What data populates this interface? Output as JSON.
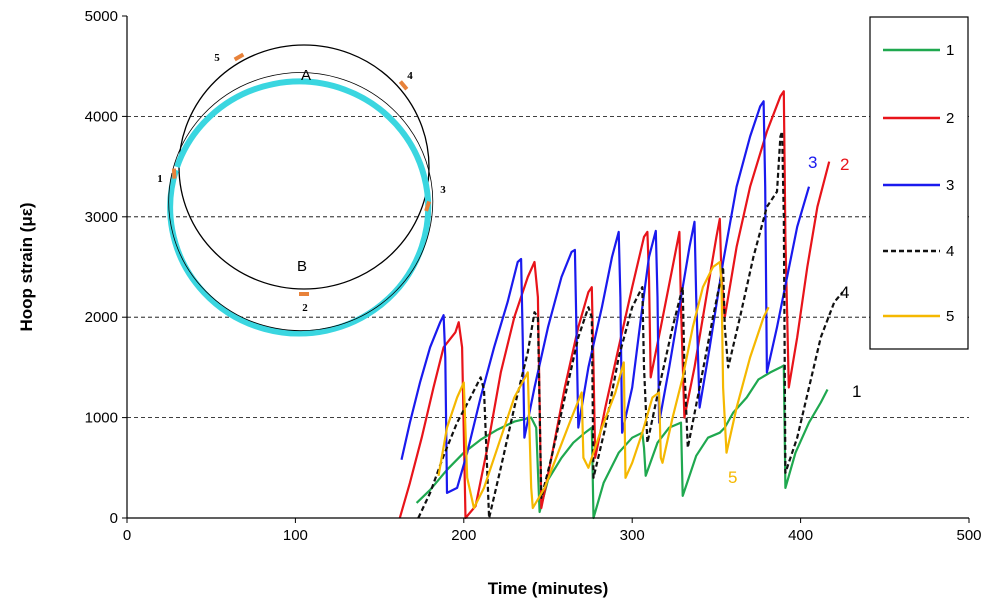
{
  "chart_data": {
    "type": "line",
    "xlabel": "Time (minutes)",
    "ylabel": "Hoop strain (με)",
    "xlim": [
      0,
      500
    ],
    "ylim": [
      0,
      5000
    ],
    "x_ticks": [
      "0",
      "100",
      "200",
      "300",
      "400",
      "500"
    ],
    "y_ticks": [
      "0",
      "1000",
      "2000",
      "3000",
      "4000",
      "5000"
    ],
    "grid": "horizontal dashed",
    "legend_position": "top-right",
    "series": [
      {
        "name": "1",
        "color": "#1fa84f",
        "dash": "solid",
        "end_label": "1",
        "points": [
          [
            172,
            150
          ],
          [
            180,
            280
          ],
          [
            190,
            480
          ],
          [
            200,
            650
          ],
          [
            210,
            780
          ],
          [
            220,
            880
          ],
          [
            230,
            960
          ],
          [
            240,
            1000
          ],
          [
            243,
            900
          ],
          [
            245,
            60
          ],
          [
            250,
            380
          ],
          [
            258,
            600
          ],
          [
            265,
            750
          ],
          [
            272,
            850
          ],
          [
            276,
            900
          ],
          [
            277,
            0
          ],
          [
            283,
            350
          ],
          [
            292,
            650
          ],
          [
            300,
            800
          ],
          [
            306,
            850
          ],
          [
            307,
            700
          ],
          [
            308,
            420
          ],
          [
            315,
            750
          ],
          [
            322,
            900
          ],
          [
            329,
            950
          ],
          [
            330,
            220
          ],
          [
            338,
            620
          ],
          [
            345,
            800
          ],
          [
            352,
            850
          ],
          [
            355,
            900
          ],
          [
            360,
            1050
          ],
          [
            368,
            1200
          ],
          [
            375,
            1380
          ],
          [
            382,
            1450
          ],
          [
            388,
            1500
          ],
          [
            390,
            1520
          ],
          [
            391,
            300
          ],
          [
            397,
            650
          ],
          [
            405,
            950
          ],
          [
            412,
            1150
          ],
          [
            416,
            1280
          ]
        ]
      },
      {
        "name": "2",
        "color": "#e8141a",
        "dash": "solid",
        "end_label": "2",
        "points": [
          [
            162,
            0
          ],
          [
            168,
            350
          ],
          [
            175,
            800
          ],
          [
            182,
            1300
          ],
          [
            188,
            1700
          ],
          [
            195,
            1850
          ],
          [
            197,
            1950
          ],
          [
            199,
            1700
          ],
          [
            201,
            0
          ],
          [
            207,
            120
          ],
          [
            214,
            700
          ],
          [
            222,
            1450
          ],
          [
            230,
            2000
          ],
          [
            238,
            2400
          ],
          [
            242,
            2550
          ],
          [
            244,
            2200
          ],
          [
            246,
            100
          ],
          [
            252,
            600
          ],
          [
            260,
            1300
          ],
          [
            268,
            1900
          ],
          [
            274,
            2250
          ],
          [
            276,
            2300
          ],
          [
            277,
            1500
          ],
          [
            278,
            600
          ],
          [
            284,
            1100
          ],
          [
            292,
            1700
          ],
          [
            300,
            2300
          ],
          [
            307,
            2800
          ],
          [
            309,
            2850
          ],
          [
            310,
            2400
          ],
          [
            311,
            1400
          ],
          [
            317,
            1900
          ],
          [
            324,
            2500
          ],
          [
            328,
            2850
          ],
          [
            329,
            2100
          ],
          [
            331,
            1000
          ],
          [
            337,
            1500
          ],
          [
            344,
            2200
          ],
          [
            350,
            2800
          ],
          [
            352,
            2980
          ],
          [
            353,
            2400
          ],
          [
            355,
            2000
          ],
          [
            362,
            2700
          ],
          [
            370,
            3300
          ],
          [
            380,
            3850
          ],
          [
            388,
            4200
          ],
          [
            390,
            4250
          ],
          [
            391,
            2800
          ],
          [
            393,
            1300
          ],
          [
            398,
            1800
          ],
          [
            404,
            2500
          ],
          [
            410,
            3100
          ],
          [
            417,
            3550
          ]
        ]
      },
      {
        "name": "3",
        "color": "#1a1aee",
        "dash": "solid",
        "end_label": "3",
        "points": [
          [
            163,
            580
          ],
          [
            168,
            950
          ],
          [
            174,
            1350
          ],
          [
            180,
            1700
          ],
          [
            186,
            1950
          ],
          [
            188,
            2020
          ],
          [
            189,
            1600
          ],
          [
            190,
            250
          ],
          [
            196,
            300
          ],
          [
            202,
            650
          ],
          [
            210,
            1200
          ],
          [
            218,
            1700
          ],
          [
            226,
            2150
          ],
          [
            232,
            2550
          ],
          [
            234,
            2580
          ],
          [
            235,
            1800
          ],
          [
            236,
            800
          ],
          [
            242,
            1300
          ],
          [
            250,
            1900
          ],
          [
            258,
            2400
          ],
          [
            264,
            2650
          ],
          [
            266,
            2670
          ],
          [
            267,
            1800
          ],
          [
            268,
            900
          ],
          [
            274,
            1500
          ],
          [
            282,
            2100
          ],
          [
            288,
            2600
          ],
          [
            292,
            2850
          ],
          [
            293,
            2200
          ],
          [
            294,
            850
          ],
          [
            300,
            1300
          ],
          [
            306,
            2100
          ],
          [
            310,
            2600
          ],
          [
            314,
            2860
          ],
          [
            315,
            2200
          ],
          [
            316,
            950
          ],
          [
            322,
            1500
          ],
          [
            328,
            2100
          ],
          [
            334,
            2700
          ],
          [
            337,
            2950
          ],
          [
            338,
            2200
          ],
          [
            340,
            1100
          ],
          [
            346,
            1700
          ],
          [
            354,
            2550
          ],
          [
            362,
            3300
          ],
          [
            370,
            3800
          ],
          [
            376,
            4100
          ],
          [
            378,
            4150
          ],
          [
            379,
            3300
          ],
          [
            380,
            1450
          ],
          [
            386,
            1900
          ],
          [
            392,
            2400
          ],
          [
            398,
            2900
          ],
          [
            405,
            3300
          ]
        ]
      },
      {
        "name": "4",
        "color": "#111111",
        "dash": "dashed",
        "end_label": "4",
        "points": [
          [
            173,
            0
          ],
          [
            180,
            250
          ],
          [
            188,
            620
          ],
          [
            196,
            950
          ],
          [
            204,
            1200
          ],
          [
            210,
            1400
          ],
          [
            212,
            1280
          ],
          [
            215,
            0
          ],
          [
            222,
            500
          ],
          [
            230,
            1100
          ],
          [
            238,
            1650
          ],
          [
            242,
            2050
          ],
          [
            244,
            2000
          ],
          [
            246,
            200
          ],
          [
            252,
            600
          ],
          [
            260,
            1200
          ],
          [
            268,
            1800
          ],
          [
            274,
            2100
          ],
          [
            276,
            2000
          ],
          [
            277,
            400
          ],
          [
            284,
            900
          ],
          [
            292,
            1600
          ],
          [
            300,
            2100
          ],
          [
            306,
            2300
          ],
          [
            307,
            1500
          ],
          [
            309,
            750
          ],
          [
            316,
            1300
          ],
          [
            324,
            1900
          ],
          [
            330,
            2300
          ],
          [
            331,
            1500
          ],
          [
            333,
            700
          ],
          [
            340,
            1300
          ],
          [
            348,
            2000
          ],
          [
            354,
            2500
          ],
          [
            355,
            1900
          ],
          [
            357,
            1500
          ],
          [
            364,
            2000
          ],
          [
            372,
            2600
          ],
          [
            380,
            3100
          ],
          [
            386,
            3250
          ],
          [
            388,
            3800
          ],
          [
            389,
            3850
          ],
          [
            390,
            3000
          ],
          [
            391,
            450
          ],
          [
            398,
            800
          ],
          [
            405,
            1300
          ],
          [
            412,
            1800
          ],
          [
            420,
            2150
          ],
          [
            425,
            2250
          ]
        ]
      },
      {
        "name": "5",
        "color": "#f5b800",
        "dash": "solid",
        "end_label": "5",
        "points": [
          [
            185,
            420
          ],
          [
            190,
            900
          ],
          [
            196,
            1200
          ],
          [
            200,
            1350
          ],
          [
            202,
            400
          ],
          [
            206,
            100
          ],
          [
            212,
            300
          ],
          [
            220,
            700
          ],
          [
            230,
            1200
          ],
          [
            238,
            1450
          ],
          [
            240,
            300
          ],
          [
            241,
            100
          ],
          [
            248,
            300
          ],
          [
            256,
            650
          ],
          [
            264,
            1000
          ],
          [
            270,
            1250
          ],
          [
            271,
            600
          ],
          [
            274,
            500
          ],
          [
            282,
            900
          ],
          [
            290,
            1250
          ],
          [
            295,
            1550
          ],
          [
            296,
            400
          ],
          [
            300,
            550
          ],
          [
            306,
            850
          ],
          [
            312,
            1200
          ],
          [
            316,
            1250
          ],
          [
            317,
            600
          ],
          [
            318,
            550
          ],
          [
            324,
            1000
          ],
          [
            330,
            1400
          ],
          [
            336,
            1900
          ],
          [
            342,
            2300
          ],
          [
            348,
            2500
          ],
          [
            352,
            2550
          ],
          [
            353,
            2350
          ],
          [
            354,
            1300
          ],
          [
            356,
            650
          ],
          [
            362,
            1100
          ],
          [
            370,
            1600
          ],
          [
            378,
            2000
          ],
          [
            381,
            2100
          ]
        ]
      }
    ]
  },
  "inset": {
    "label_top": "A",
    "label_bottom": "B",
    "gauge_labels": [
      "1",
      "2",
      "3",
      "4",
      "5"
    ],
    "ring_color": "#3ad6e0",
    "gauge_color": "#e8823a"
  }
}
